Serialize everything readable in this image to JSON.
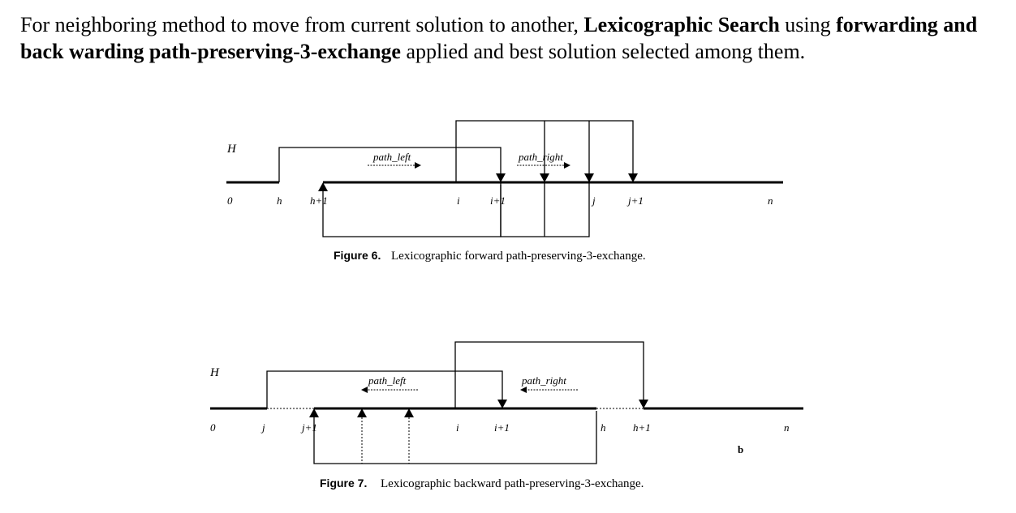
{
  "intro": {
    "t1": "For neighboring method to move from current solution to another, ",
    "b1": "Lexicographic Search",
    "t2": " using ",
    "b2": "forwarding and back warding path-preserving-3-exchange",
    "t3": " applied and best solution selected among them."
  },
  "fig6": {
    "axis_label": "H",
    "ticks": [
      "0",
      "h",
      "h+1",
      "i",
      "i+1",
      "j",
      "j+1",
      "n"
    ],
    "path_left": "path_left",
    "path_right": "path_right",
    "caption_num": "Figure 6.",
    "caption_text": "Lexicographic forward path-preserving-3-exchange."
  },
  "fig7": {
    "axis_label": "H",
    "ticks": [
      "0",
      "j",
      "j+1",
      "i",
      "i+1",
      "h",
      "h+1",
      "n"
    ],
    "path_left": "path_left",
    "path_right": "path_right",
    "extra_label": "b",
    "caption_num": "Figure 7.",
    "caption_text": "Lexicographic backward path-preserving-3-exchange."
  }
}
